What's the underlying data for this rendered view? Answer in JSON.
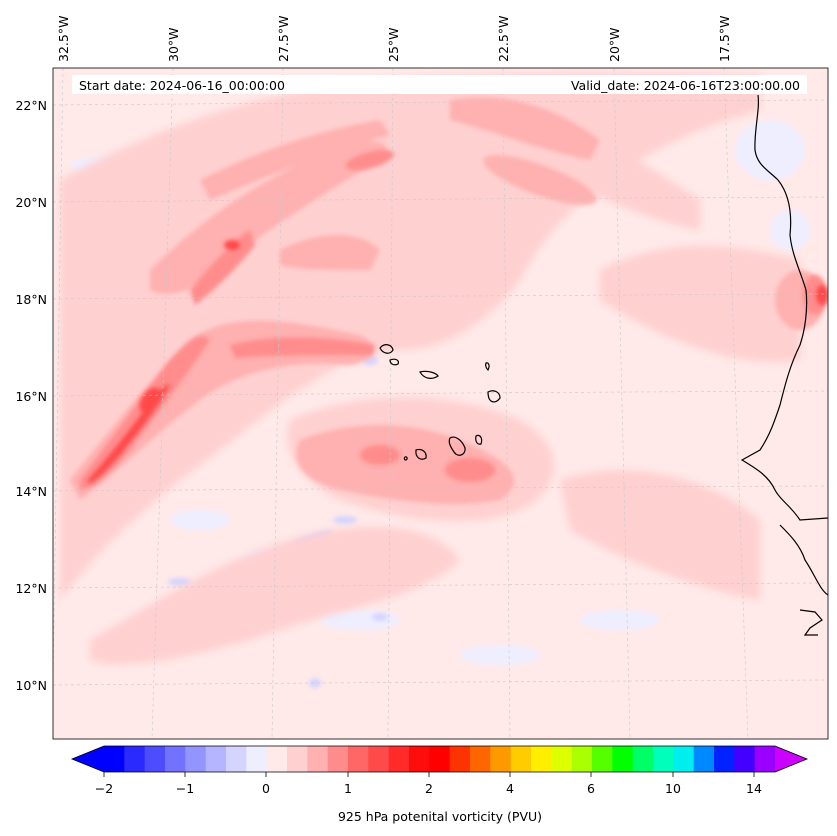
{
  "map": {
    "start_date": "Start date: 2024-06-16_00:00:00",
    "valid_date": "Valid_date: 2024-06-16T23:00:00.00",
    "lon_labels": [
      "32.5°W",
      "30°W",
      "27.5°W",
      "25°W",
      "22.5°W",
      "20°W",
      "17.5°W"
    ],
    "lat_labels": [
      "22°N",
      "20°N",
      "18°N",
      "16°N",
      "14°N",
      "12°N",
      "10°N"
    ],
    "background_color": "#ffe9e9",
    "coastline_color": "#000000"
  },
  "colorbar": {
    "label": "925 hPa potenital vorticity (PVU)",
    "tick_labels": [
      "−2",
      "−1",
      "0",
      "1",
      "2",
      "4",
      "6",
      "10",
      "14"
    ],
    "colors": [
      "#0000ff",
      "#2a2aff",
      "#4d4dff",
      "#7272ff",
      "#9494ff",
      "#b4b4ff",
      "#d4d4ff",
      "#eeeeff",
      "#ffe9e9",
      "#ffd0d0",
      "#ffb0b0",
      "#ff8c8c",
      "#ff6666",
      "#ff4a4a",
      "#ff2b2b",
      "#ff0d0d",
      "#ff0000",
      "#ff3300",
      "#ff6600",
      "#ff9900",
      "#ffcc00",
      "#ffee00",
      "#ddff00",
      "#aaff00",
      "#55ff00",
      "#00ff00",
      "#00ff66",
      "#00ffbb",
      "#00eeee",
      "#0088ff",
      "#0022ff",
      "#4400ff",
      "#9900ff"
    ],
    "under_color": "#0000ff",
    "over_color": "#cc00ff"
  }
}
